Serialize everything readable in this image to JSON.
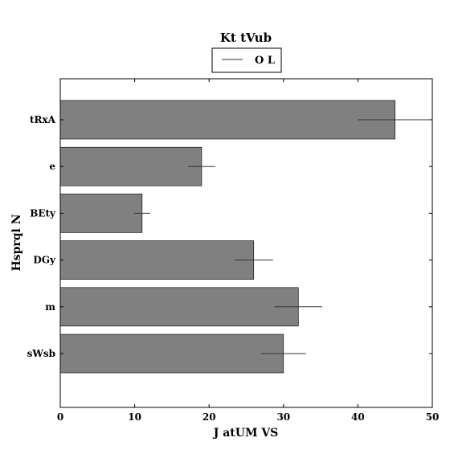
{
  "chart_data": {
    "type": "bar",
    "orientation": "horizontal",
    "title": "Kt tVub",
    "xlabel": "J atUM VS",
    "ylabel": "Hsprql N",
    "xlim": [
      0,
      50
    ],
    "xticks": [
      0,
      10,
      20,
      30,
      40,
      50
    ],
    "categories": [
      "tRxA",
      "e",
      "BEty",
      "DGy",
      "m",
      "sWsb"
    ],
    "series": [
      {
        "name": "O L",
        "values": [
          45,
          19,
          11,
          26,
          32,
          30
        ],
        "errors": [
          5,
          1.8,
          1.1,
          2.6,
          3.2,
          3.0
        ]
      }
    ],
    "bar_color": "#808080",
    "errorbar_color": "#333333",
    "grid": false,
    "legend_position": "top-center"
  }
}
